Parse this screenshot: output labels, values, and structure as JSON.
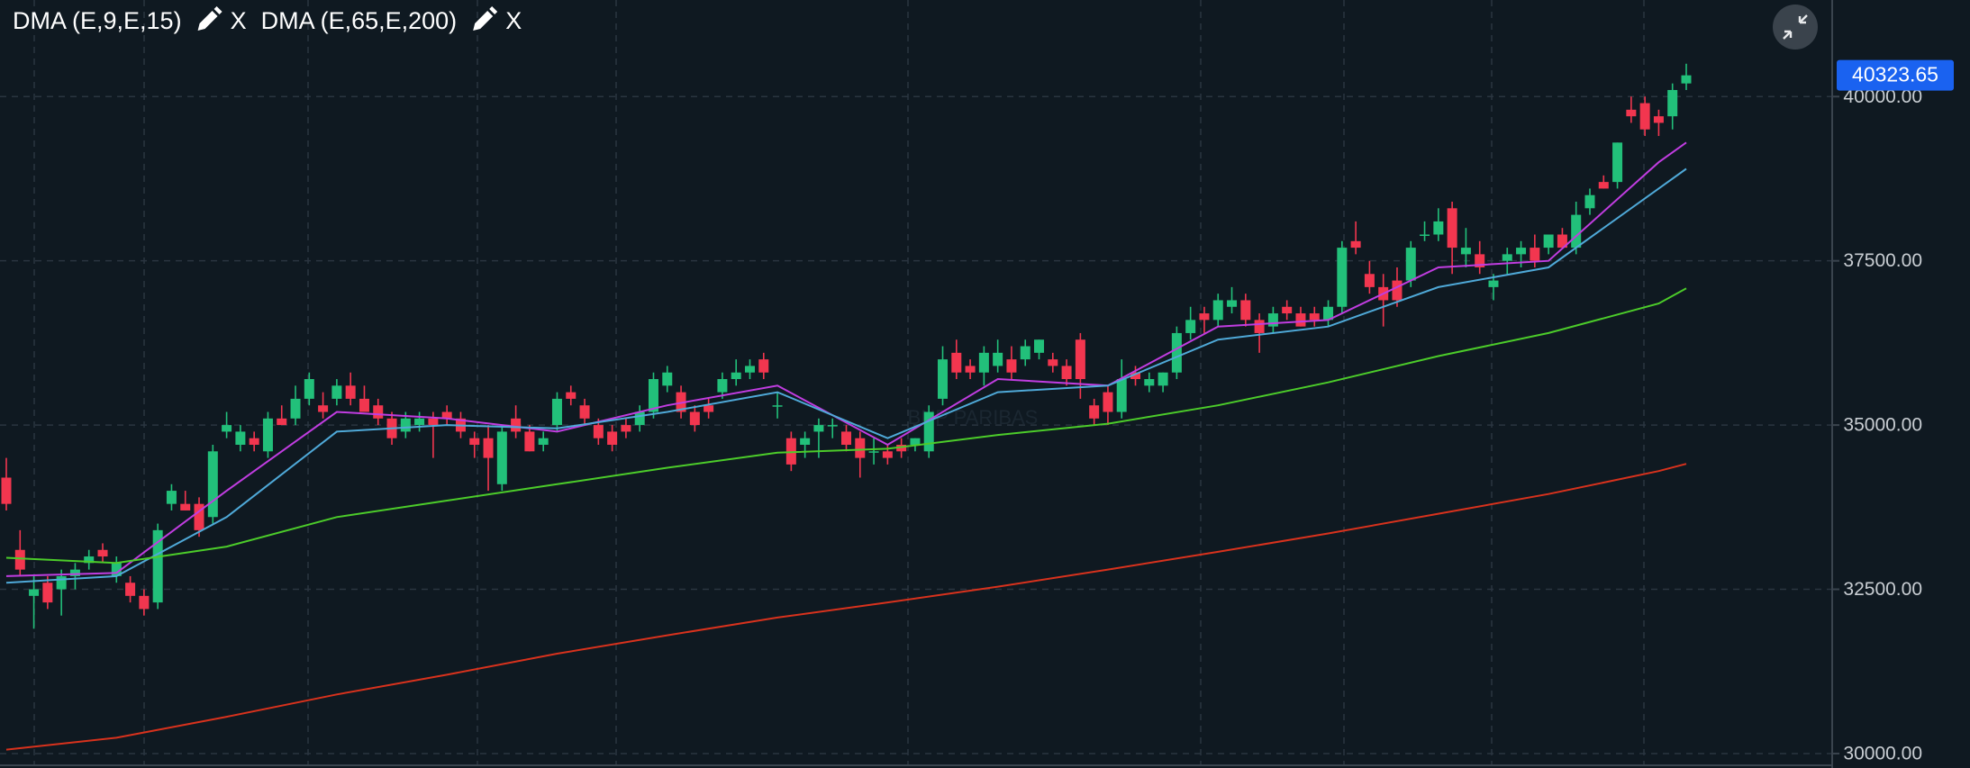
{
  "chart_data": {
    "type": "candlestick",
    "up_color": "#22c07a",
    "down_color": "#f2364f",
    "watermark": "BNP PARIBAS",
    "last_price": 40323.65,
    "last_price_color": "#1a62f0",
    "ylim": [
      29780,
      41470
    ],
    "yticks": [
      {
        "value": 30000,
        "label": "30000.00"
      },
      {
        "value": 32500,
        "label": "32500.00"
      },
      {
        "value": 35000,
        "label": "35000.00"
      },
      {
        "value": 37500,
        "label": "37500.00"
      },
      {
        "value": 40000,
        "label": "40000.00"
      }
    ],
    "grid": true,
    "open": [
      34200,
      33100,
      32400,
      32600,
      32500,
      32700,
      32900,
      33100,
      32700,
      32600,
      32400,
      32300,
      33800,
      33800,
      33800,
      33600,
      34900,
      34700,
      34800,
      34600,
      35100,
      35100,
      35400,
      35300,
      35400,
      35600,
      35400,
      35300,
      35100,
      34900,
      35000,
      35100,
      35200,
      35100,
      34800,
      34800,
      34100,
      35100,
      34900,
      34700,
      35000,
      35500,
      35300,
      35000,
      34900,
      35000,
      35000,
      35200,
      35600,
      35500,
      35200,
      35300,
      35500,
      35700,
      35800,
      36000,
      35300,
      34800,
      34700,
      34900,
      35000,
      34900,
      34800,
      34600,
      34600,
      34700,
      34700,
      34600,
      35400,
      36100,
      35900,
      35800,
      35900,
      36000,
      36000,
      36100,
      36000,
      35900,
      36300,
      35300,
      35500,
      35200,
      35800,
      35600,
      35600,
      35800,
      36400,
      36700,
      36600,
      36800,
      36900,
      36600,
      36500,
      36800,
      36700,
      36700,
      36600,
      36800,
      37800,
      37300,
      37100,
      37200,
      37200,
      37900,
      37900,
      38300,
      37600,
      37600,
      37100,
      37500,
      37600,
      37700,
      37700,
      37900,
      37700,
      38300,
      38700,
      38700,
      39800,
      39900,
      39700,
      39700,
      40200
    ],
    "high": [
      34500,
      33400,
      32700,
      32700,
      32800,
      32900,
      33100,
      33200,
      33000,
      32700,
      32500,
      33500,
      34100,
      34000,
      33900,
      34700,
      35200,
      35000,
      34900,
      35200,
      35300,
      35600,
      35800,
      35500,
      35700,
      35800,
      35600,
      35400,
      35200,
      35200,
      35200,
      35200,
      35300,
      35200,
      34900,
      35000,
      35000,
      35300,
      35000,
      34900,
      35500,
      35600,
      35400,
      35100,
      35000,
      35100,
      35300,
      35800,
      35900,
      35600,
      35300,
      35400,
      35800,
      36000,
      36000,
      36100,
      35500,
      34900,
      34900,
      35100,
      35100,
      35000,
      34900,
      34800,
      34700,
      34800,
      34800,
      35300,
      36200,
      36300,
      36000,
      36200,
      36300,
      36200,
      36300,
      36300,
      36100,
      36000,
      36400,
      35400,
      35600,
      36000,
      35900,
      35800,
      35800,
      36500,
      36800,
      36800,
      37000,
      37100,
      37000,
      36700,
      36800,
      36900,
      36800,
      36800,
      36900,
      37800,
      38100,
      37500,
      37300,
      37400,
      37800,
      38100,
      38300,
      38400,
      38000,
      37800,
      37300,
      37700,
      37800,
      37900,
      37900,
      38000,
      38400,
      38600,
      38800,
      39300,
      40000,
      40000,
      39800,
      40200,
      40500
    ],
    "low": [
      33700,
      32700,
      31900,
      32200,
      32100,
      32500,
      32800,
      32900,
      32600,
      32300,
      32100,
      32200,
      33700,
      33700,
      33300,
      33500,
      34800,
      34600,
      34600,
      34500,
      35000,
      35000,
      35300,
      35100,
      35300,
      35300,
      35200,
      35000,
      34700,
      34800,
      34900,
      34500,
      35000,
      34800,
      34500,
      34000,
      34000,
      34800,
      34600,
      34600,
      34900,
      35300,
      35000,
      34700,
      34600,
      34800,
      34900,
      35100,
      35500,
      35100,
      34900,
      35100,
      35400,
      35600,
      35700,
      35700,
      35100,
      34300,
      34500,
      34500,
      34800,
      34600,
      34200,
      34400,
      34400,
      34500,
      34600,
      34500,
      35300,
      35700,
      35700,
      35600,
      35800,
      35700,
      35900,
      36000,
      35800,
      35600,
      35400,
      35000,
      35000,
      35100,
      35600,
      35500,
      35500,
      35700,
      36300,
      36400,
      36500,
      36700,
      36500,
      36100,
      36400,
      36600,
      36500,
      36500,
      36500,
      36700,
      37600,
      37000,
      36500,
      36800,
      37100,
      37800,
      37800,
      37300,
      37400,
      37300,
      36900,
      37300,
      37400,
      37400,
      37600,
      37700,
      37600,
      38200,
      38600,
      38600,
      39600,
      39400,
      39400,
      39500,
      40100
    ],
    "close": [
      33800,
      32800,
      32500,
      32300,
      32700,
      32800,
      33000,
      33000,
      32900,
      32400,
      32200,
      33400,
      34000,
      33700,
      33400,
      34600,
      35000,
      34900,
      34700,
      35100,
      35000,
      35400,
      35700,
      35200,
      35600,
      35400,
      35200,
      35100,
      34800,
      35100,
      35100,
      35000,
      35100,
      34900,
      34700,
      34500,
      34900,
      34900,
      34600,
      34800,
      35400,
      35400,
      35100,
      34800,
      34700,
      34900,
      35200,
      35700,
      35800,
      35200,
      35000,
      35200,
      35700,
      35800,
      35900,
      35800,
      35300,
      34400,
      34800,
      35000,
      35000,
      34700,
      34500,
      34600,
      34500,
      34600,
      34800,
      35200,
      36000,
      35800,
      35800,
      36100,
      36100,
      35800,
      36200,
      36300,
      35900,
      35700,
      35700,
      35100,
      35200,
      35700,
      35700,
      35700,
      35800,
      36400,
      36600,
      36600,
      36900,
      36900,
      36600,
      36400,
      36700,
      36700,
      36500,
      36600,
      36800,
      37700,
      37700,
      37100,
      36900,
      36900,
      37700,
      37900,
      38100,
      37700,
      37700,
      37400,
      37200,
      37600,
      37700,
      37500,
      37900,
      37700,
      38200,
      38500,
      38600,
      39300,
      39700,
      39500,
      39600,
      40100,
      40323.65
    ],
    "indicators": [
      {
        "label": "DMA (E,9,E,15)",
        "remove": "X",
        "lines": [
          {
            "color": "#c03de0",
            "x": [
              0,
              8,
              16,
              24,
              32,
              40,
              48,
              56,
              64,
              72,
              80,
              88,
              96,
              104,
              112,
              120,
              122
            ],
            "values": [
              32700,
              32750,
              34000,
              35200,
              35100,
              34900,
              35300,
              35600,
              34700,
              35700,
              35600,
              36500,
              36600,
              37400,
              37500,
              39000,
              39300
            ]
          },
          {
            "color": "#4fa9d8",
            "x": [
              0,
              8,
              16,
              24,
              32,
              40,
              48,
              56,
              64,
              72,
              80,
              88,
              96,
              104,
              112,
              120,
              122
            ],
            "values": [
              32600,
              32700,
              33600,
              34900,
              35000,
              34950,
              35200,
              35500,
              34800,
              35500,
              35600,
              36300,
              36500,
              37100,
              37400,
              38600,
              38900
            ]
          }
        ]
      },
      {
        "label": "DMA (E,65,E,200)",
        "remove": "X",
        "lines": [
          {
            "color": "#4ccc2a",
            "x": [
              0,
              8,
              16,
              24,
              32,
              40,
              48,
              56,
              64,
              72,
              80,
              88,
              96,
              104,
              112,
              120,
              122
            ],
            "values": [
              32980,
              32900,
              33150,
              33600,
              33850,
              34100,
              34350,
              34580,
              34640,
              34850,
              35020,
              35300,
              35650,
              36050,
              36400,
              36850,
              37080
            ]
          },
          {
            "color": "#d8321d",
            "x": [
              0,
              8,
              16,
              24,
              32,
              40,
              48,
              56,
              64,
              72,
              80,
              88,
              96,
              104,
              112,
              120,
              122
            ],
            "values": [
              30060,
              30240,
              30560,
              30900,
              31200,
              31520,
              31800,
              32070,
              32300,
              32540,
              32800,
              33070,
              33350,
              33650,
              33950,
              34300,
              34410
            ]
          }
        ]
      }
    ]
  }
}
